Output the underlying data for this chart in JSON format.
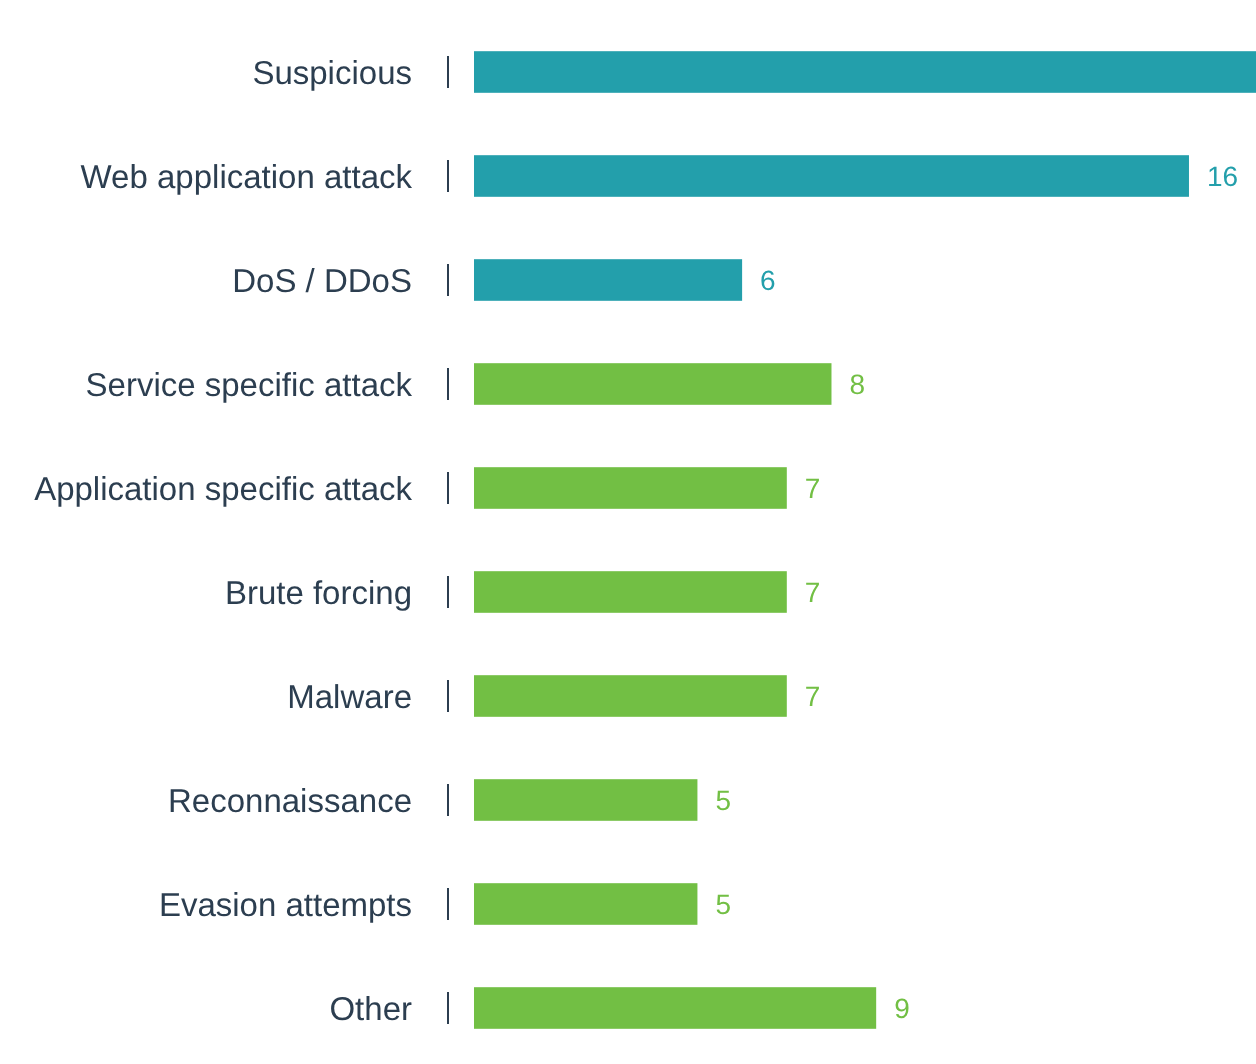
{
  "chart_data": {
    "type": "bar",
    "orientation": "horizontal",
    "categories": [
      "Suspicious",
      "Web application attack",
      "DoS / DDoS",
      "Service specific attack",
      "Application specific attack",
      "Brute forcing",
      "Malware",
      "Reconnaissance",
      "Evasion attempts",
      "Other"
    ],
    "values": [
      17.5,
      16,
      6,
      8,
      7,
      7,
      7,
      5,
      5,
      9
    ],
    "colors": [
      "#239fab",
      "#239fab",
      "#239fab",
      "#72bf44",
      "#72bf44",
      "#72bf44",
      "#72bf44",
      "#72bf44",
      "#72bf44",
      "#72bf44"
    ],
    "value_labels": [
      null,
      "16",
      "6",
      "8",
      "7",
      "7",
      "7",
      "5",
      "5",
      "9"
    ]
  }
}
